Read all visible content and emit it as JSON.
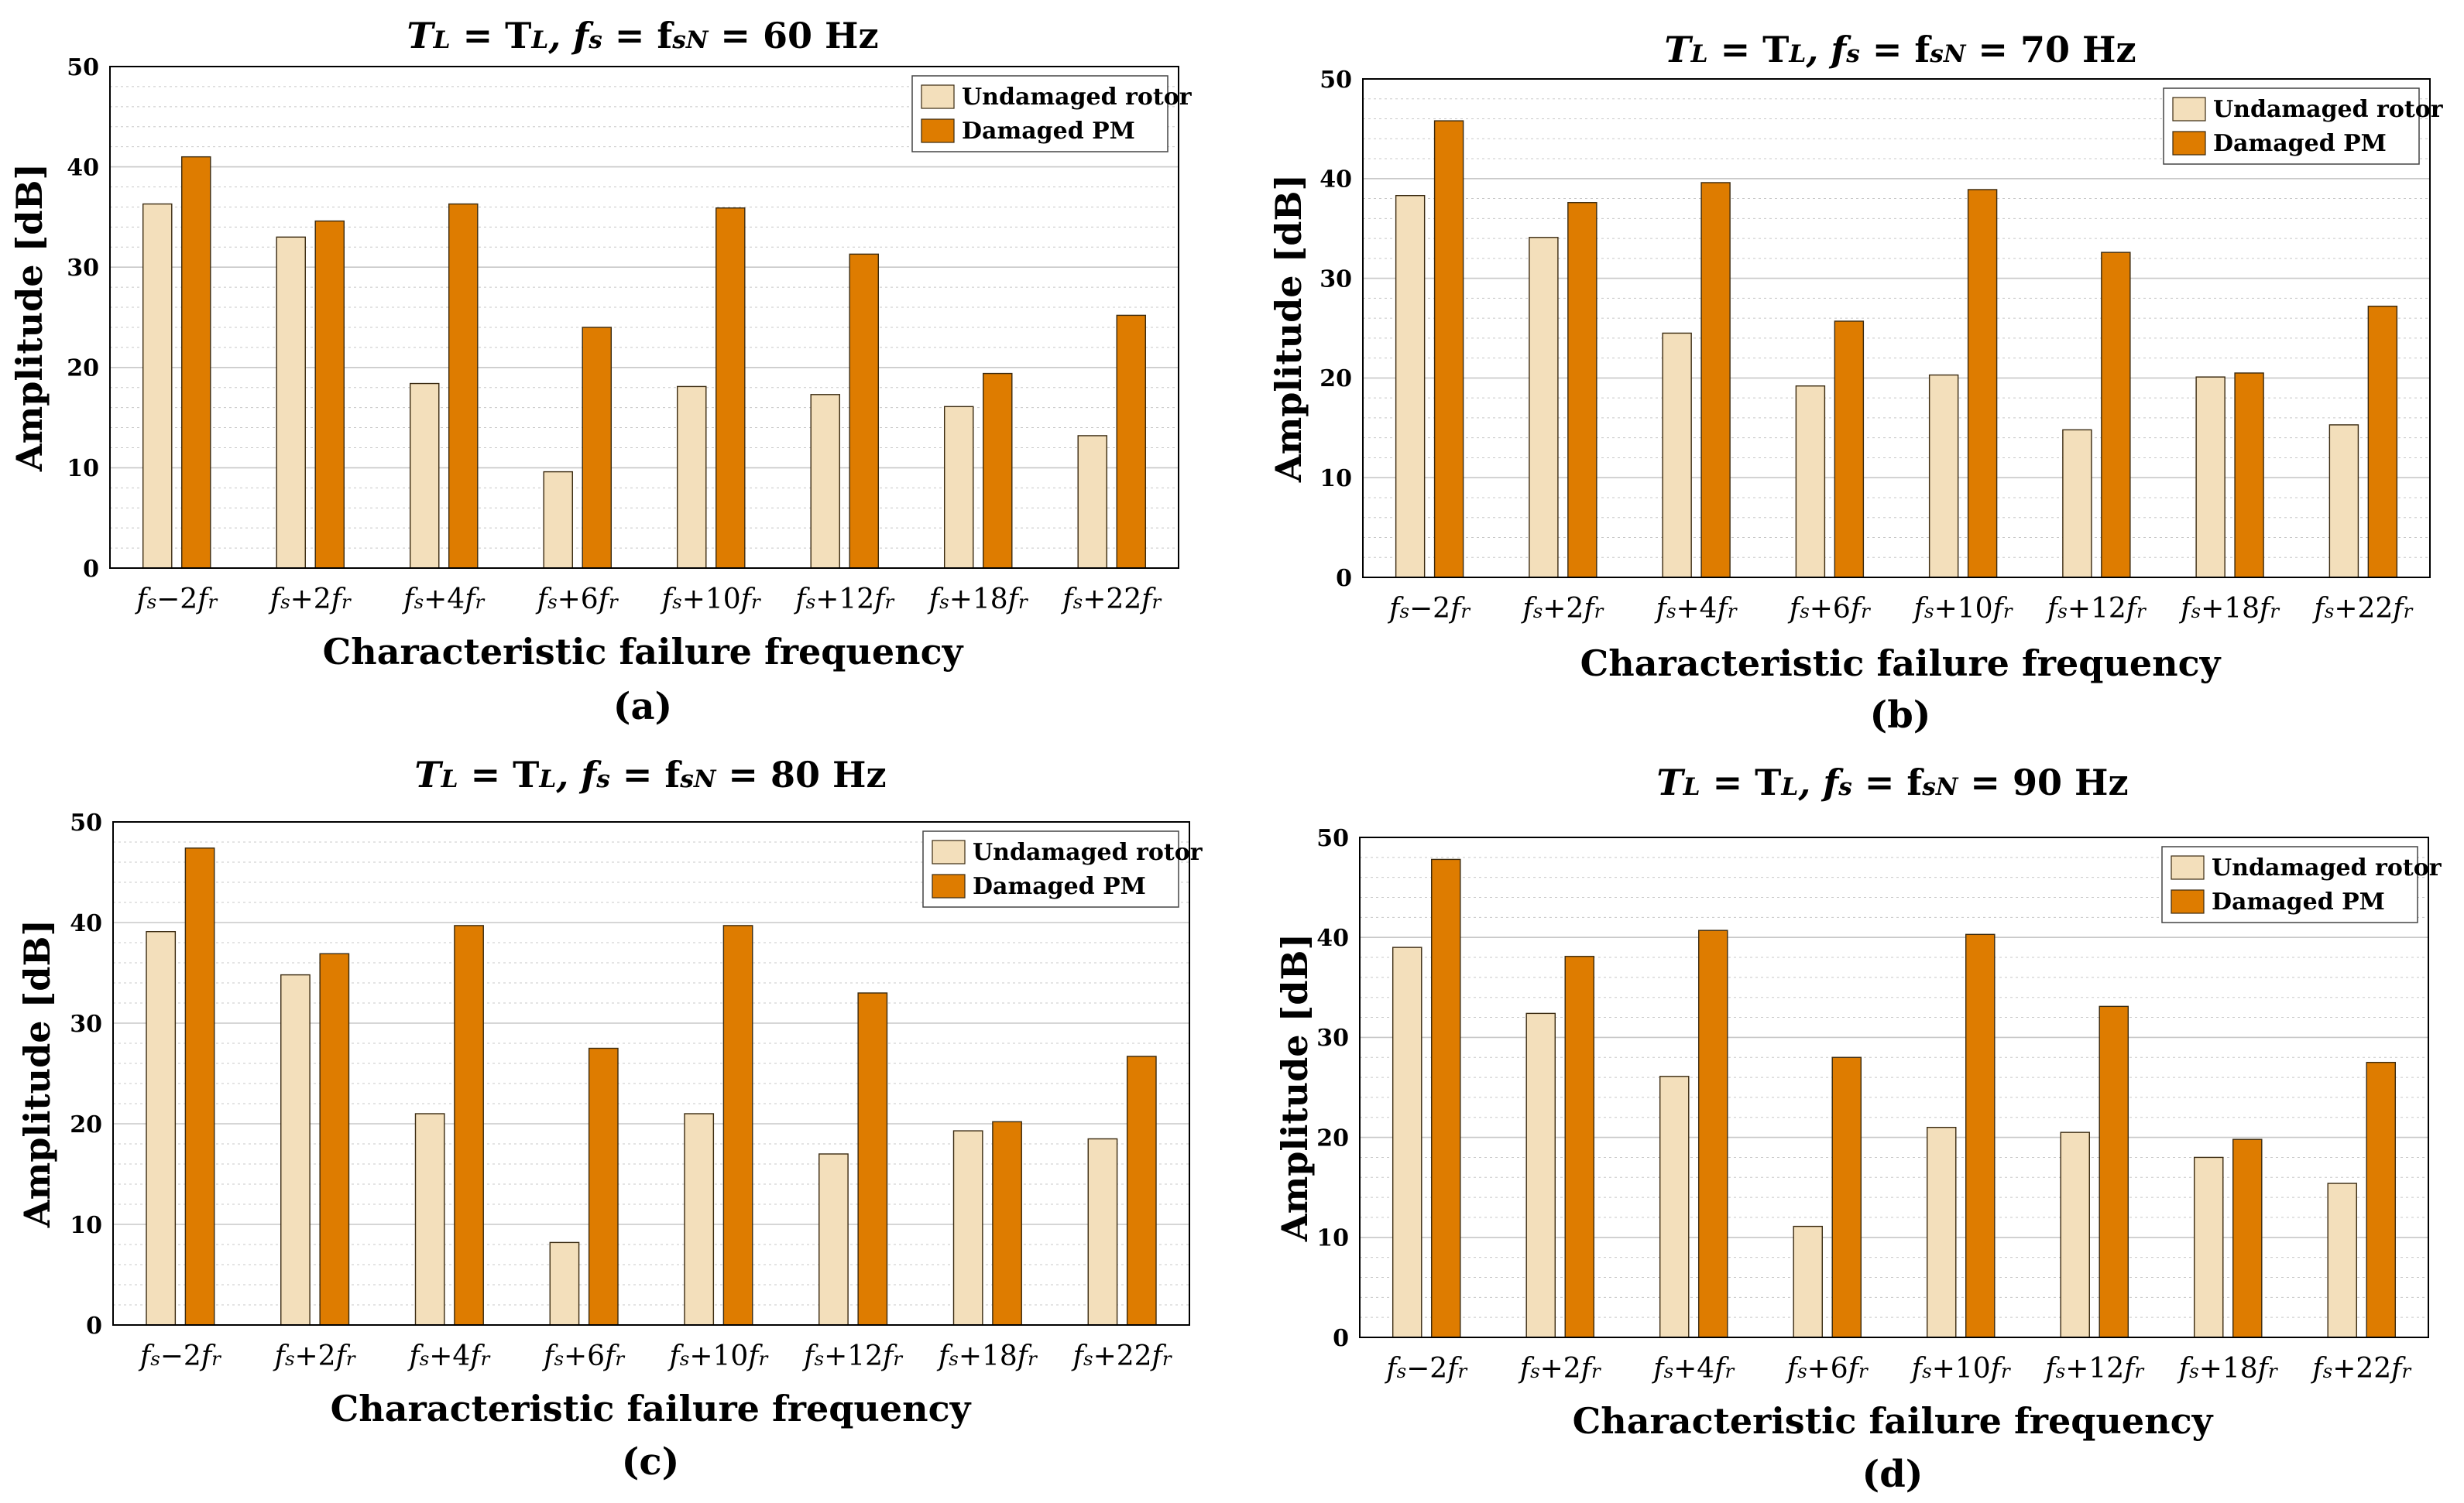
{
  "figure": {
    "label_a": "(a)",
    "label_b": "(b)",
    "label_c": "(c)",
    "label_d": "(d)"
  },
  "colors": {
    "undamaged": "#f3dfbb",
    "damaged": "#de7c00",
    "bar_edge": "#3a2a10",
    "grid": "#c8c8c8",
    "axis": "#000000"
  },
  "chart_data": [
    {
      "type": "bar",
      "panel": "a",
      "title_parts": [
        "T",
        "L",
        " = T",
        "L",
        ", f",
        "s",
        " = f",
        "sN",
        " = 60 Hz"
      ],
      "title": "TL = TL, fs = fsN = 60 Hz",
      "xlabel": "Characteristic failure frequency",
      "ylabel": "Amplitude [dB]",
      "ylim": [
        0,
        50
      ],
      "yticks": [
        0,
        10,
        20,
        30,
        40,
        50
      ],
      "grid": true,
      "legend_position": "top-right",
      "categories": [
        "fs−2fr",
        "fs+2fr",
        "fs+4fr",
        "fs+6fr",
        "fs+10fr",
        "fs+12fr",
        "fs+18fr",
        "fs+22fr"
      ],
      "series": [
        {
          "name": "Undamaged rotor",
          "values": [
            36.3,
            33.0,
            18.4,
            9.6,
            18.1,
            17.3,
            16.1,
            13.2
          ]
        },
        {
          "name": "Damaged PM",
          "values": [
            41.0,
            34.6,
            36.3,
            24.0,
            35.9,
            31.3,
            19.4,
            25.2
          ]
        }
      ]
    },
    {
      "type": "bar",
      "panel": "b",
      "title_parts": [
        "T",
        "L",
        " = T",
        "L",
        ", f",
        "s",
        " = f",
        "sN",
        " = 70 Hz"
      ],
      "title": "TL = TL, fs = fsN = 70 Hz",
      "xlabel": "Characteristic failure frequency",
      "ylabel": "Amplitude [dB]",
      "ylim": [
        0,
        50
      ],
      "yticks": [
        0,
        10,
        20,
        30,
        40,
        50
      ],
      "grid": true,
      "legend_position": "top-right",
      "categories": [
        "fs−2fr",
        "fs+2fr",
        "fs+4fr",
        "fs+6fr",
        "fs+10fr",
        "fs+12fr",
        "fs+18fr",
        "fs+22fr"
      ],
      "series": [
        {
          "name": "Undamaged rotor",
          "values": [
            38.3,
            34.1,
            24.5,
            19.2,
            20.3,
            14.8,
            20.1,
            15.3
          ]
        },
        {
          "name": "Damaged PM",
          "values": [
            45.8,
            37.6,
            39.6,
            25.7,
            38.9,
            32.6,
            20.5,
            27.2
          ]
        }
      ]
    },
    {
      "type": "bar",
      "panel": "c",
      "title_parts": [
        "T",
        "L",
        " = T",
        "L",
        ", f",
        "s",
        " = f",
        "sN",
        " = 80 Hz"
      ],
      "title": "TL = TL, fs = fsN = 80 Hz",
      "xlabel": "Characteristic failure frequency",
      "ylabel": "Amplitude [dB]",
      "ylim": [
        0,
        50
      ],
      "yticks": [
        0,
        10,
        20,
        30,
        40,
        50
      ],
      "grid": true,
      "legend_position": "top-right",
      "categories": [
        "fs−2fr",
        "fs+2fr",
        "fs+4fr",
        "fs+6fr",
        "fs+10fr",
        "fs+12fr",
        "fs+18fr",
        "fs+22fr"
      ],
      "series": [
        {
          "name": "Undamaged rotor",
          "values": [
            39.1,
            34.8,
            21.0,
            8.2,
            21.0,
            17.0,
            19.3,
            18.5
          ]
        },
        {
          "name": "Damaged PM",
          "values": [
            47.4,
            36.9,
            39.7,
            27.5,
            39.7,
            33.0,
            20.2,
            26.7
          ]
        }
      ]
    },
    {
      "type": "bar",
      "panel": "d",
      "title_parts": [
        "T",
        "L",
        " = T",
        "L",
        ", f",
        "s",
        " = f",
        "sN",
        " = 90 Hz"
      ],
      "title": "TL = TL, fs = fsN = 90 Hz",
      "xlabel": "Characteristic failure frequency",
      "ylabel": "Amplitude [dB]",
      "ylim": [
        0,
        50
      ],
      "yticks": [
        0,
        10,
        20,
        30,
        40,
        50
      ],
      "grid": true,
      "legend_position": "top-right",
      "categories": [
        "fs−2fr",
        "fs+2fr",
        "fs+4fr",
        "fs+6fr",
        "fs+10fr",
        "fs+12fr",
        "fs+18fr",
        "fs+22fr"
      ],
      "series": [
        {
          "name": "Undamaged rotor",
          "values": [
            39.0,
            32.4,
            26.1,
            11.1,
            21.0,
            20.5,
            18.0,
            15.4
          ]
        },
        {
          "name": "Damaged PM",
          "values": [
            47.8,
            38.1,
            40.7,
            28.0,
            40.3,
            33.1,
            19.8,
            27.5
          ]
        }
      ]
    }
  ]
}
